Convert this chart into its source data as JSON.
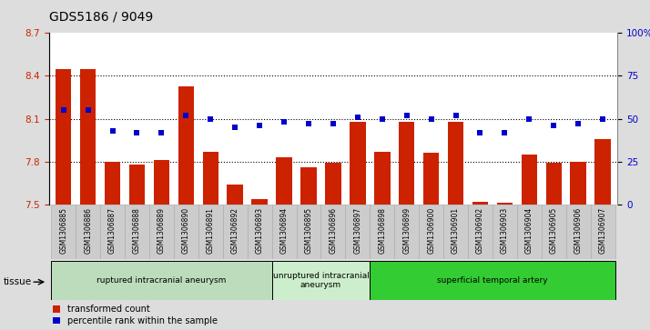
{
  "title": "GDS5186 / 9049",
  "categories": [
    "GSM1306885",
    "GSM1306886",
    "GSM1306887",
    "GSM1306888",
    "GSM1306889",
    "GSM1306890",
    "GSM1306891",
    "GSM1306892",
    "GSM1306893",
    "GSM1306894",
    "GSM1306895",
    "GSM1306896",
    "GSM1306897",
    "GSM1306898",
    "GSM1306899",
    "GSM1306900",
    "GSM1306901",
    "GSM1306902",
    "GSM1306903",
    "GSM1306904",
    "GSM1306905",
    "GSM1306906",
    "GSM1306907"
  ],
  "bar_values": [
    8.45,
    8.45,
    7.8,
    7.78,
    7.81,
    8.33,
    7.87,
    7.64,
    7.54,
    7.83,
    7.76,
    7.79,
    8.08,
    7.87,
    8.08,
    7.86,
    8.08,
    7.52,
    7.51,
    7.85,
    7.79,
    7.8,
    7.96
  ],
  "percentile_values": [
    55,
    55,
    43,
    42,
    42,
    52,
    50,
    45,
    46,
    48,
    47,
    47,
    51,
    50,
    52,
    50,
    52,
    42,
    42,
    50,
    46,
    47,
    50
  ],
  "ylim_left": [
    7.5,
    8.7
  ],
  "ylim_right": [
    0,
    100
  ],
  "yticks_left": [
    7.5,
    7.8,
    8.1,
    8.4,
    8.7
  ],
  "yticks_right": [
    0,
    25,
    50,
    75,
    100
  ],
  "ytick_labels_right": [
    "0",
    "25",
    "50",
    "75",
    "100%"
  ],
  "bar_color": "#cc2200",
  "dot_color": "#0000cc",
  "bar_baseline": 7.5,
  "groups": [
    {
      "label": "ruptured intracranial aneurysm",
      "start": 0,
      "end": 9,
      "color": "#bbddbb"
    },
    {
      "label": "unruptured intracranial\naneurysm",
      "start": 9,
      "end": 13,
      "color": "#cceecc"
    },
    {
      "label": "superficial temporal artery",
      "start": 13,
      "end": 23,
      "color": "#33cc33"
    }
  ],
  "tissue_label": "tissue",
  "legend_labels": [
    "transformed count",
    "percentile rank within the sample"
  ],
  "background_color": "#dddddd",
  "plot_bg_color": "#ffffff",
  "xtick_bg_color": "#cccccc",
  "title_fontsize": 10,
  "axis_label_color_left": "#cc2200",
  "axis_label_color_right": "#0000cc",
  "grid_lines": [
    7.8,
    8.1,
    8.4
  ]
}
